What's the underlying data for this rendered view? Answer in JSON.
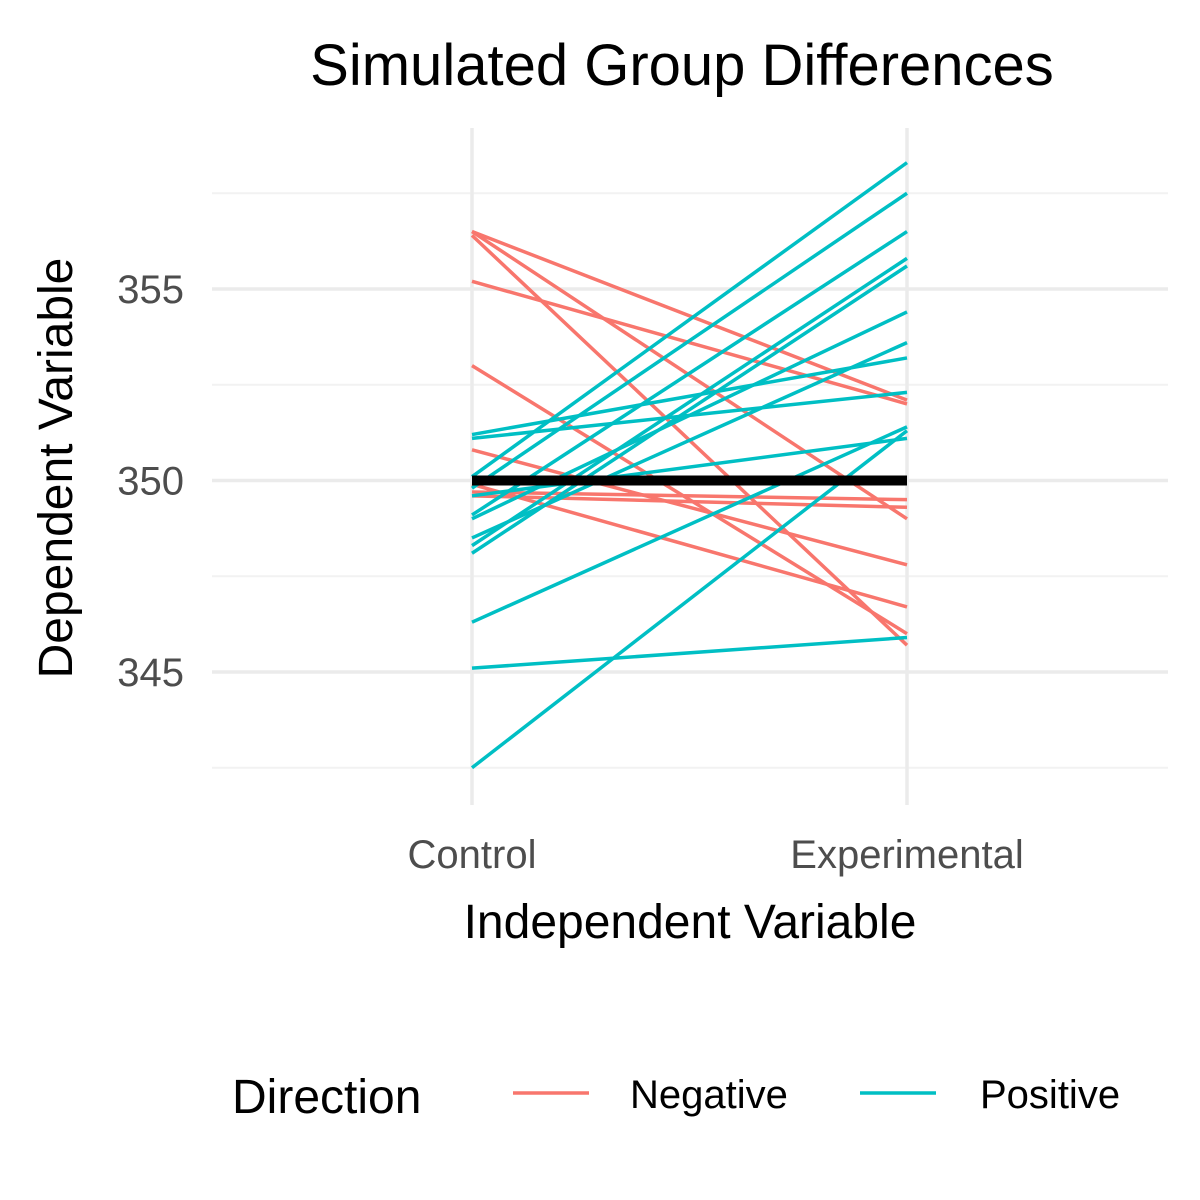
{
  "chart_data": {
    "type": "line",
    "title": "Simulated Group Differences",
    "xlabel": "Independent Variable",
    "ylabel": "Dependent Variable",
    "categories": [
      "Control",
      "Experimental"
    ],
    "ylim": [
      341.7,
      359.0
    ],
    "y_ticks": [
      345,
      350,
      355
    ],
    "y_minor_ticks": [
      342.5,
      347.5,
      352.5,
      357.5
    ],
    "legend": {
      "title": "Direction",
      "position": "bottom",
      "entries": [
        {
          "label": "Negative",
          "color": "#F8766D"
        },
        {
          "label": "Positive",
          "color": "#00BFC4"
        }
      ]
    },
    "mean_line": {
      "values": [
        350.0,
        350.0
      ],
      "color": "#000000"
    },
    "series": [
      {
        "name": "Negative",
        "color": "#F8766D",
        "lines": [
          [
            356.5,
            352.1
          ],
          [
            356.4,
            345.7
          ],
          [
            356.5,
            349.0
          ],
          [
            355.2,
            352.0
          ],
          [
            353.0,
            346.0
          ],
          [
            350.8,
            347.8
          ],
          [
            349.9,
            346.7
          ],
          [
            349.6,
            349.3
          ],
          [
            349.7,
            349.5
          ]
        ]
      },
      {
        "name": "Positive",
        "color": "#00BFC4",
        "lines": [
          [
            351.2,
            353.2
          ],
          [
            351.1,
            352.3
          ],
          [
            349.6,
            351.1
          ],
          [
            350.1,
            358.3
          ],
          [
            349.8,
            357.5
          ],
          [
            349.1,
            356.5
          ],
          [
            348.3,
            355.8
          ],
          [
            348.1,
            355.6
          ],
          [
            349.0,
            354.4
          ],
          [
            348.5,
            353.6
          ],
          [
            346.3,
            351.4
          ],
          [
            345.1,
            345.9
          ],
          [
            342.5,
            351.3
          ]
        ]
      }
    ]
  }
}
